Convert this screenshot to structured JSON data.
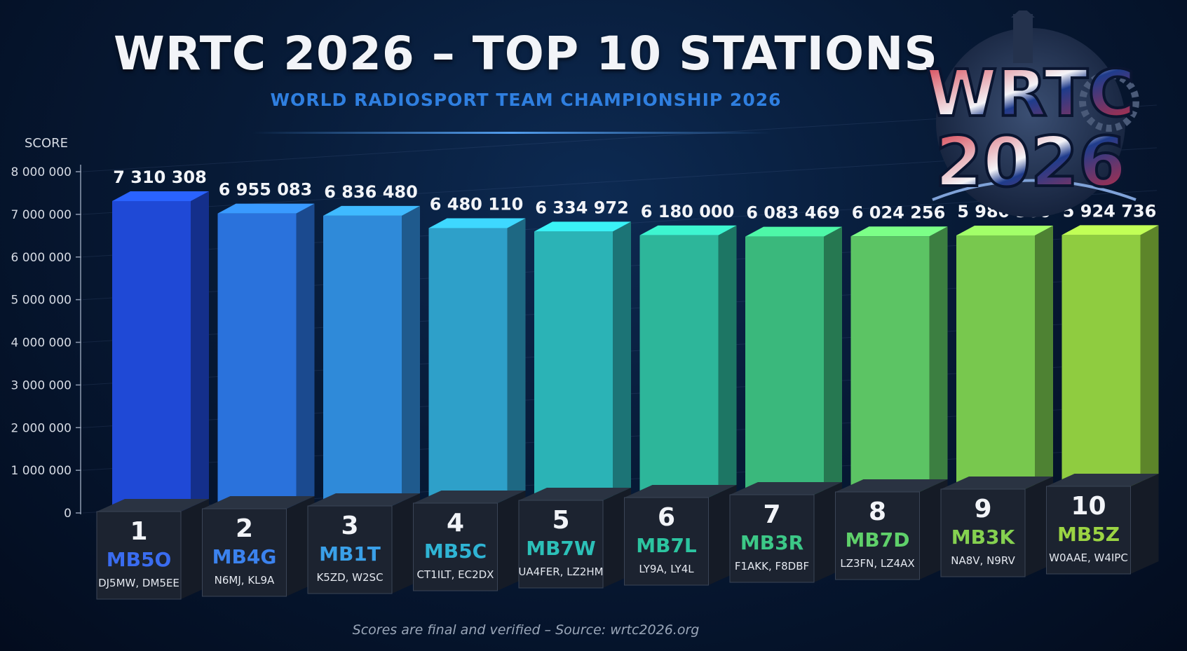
{
  "title": "WRTC 2026 – TOP 10 STATIONS",
  "subtitle": "WORLD RADIOSPORT TEAM CHAMPIONSHIP 2026",
  "footnote": "Scores are final and verified – Source: wrtc2026.org",
  "logo": {
    "line1": "WRTC",
    "line2": "2026"
  },
  "colors": {
    "bars": [
      "#1f49d6",
      "#2a72dc",
      "#2f8ad9",
      "#2ea0c9",
      "#2bb3b6",
      "#2db69a",
      "#3ab87c",
      "#5cc464",
      "#78c84e",
      "#8fcc40"
    ],
    "labels": [
      "#3a6cf0",
      "#3b82ee",
      "#3aa0e8",
      "#2fb4d4",
      "#2cc0b8",
      "#2cc4a0",
      "#3cc887",
      "#5fd06a",
      "#85d150",
      "#9bd443"
    ]
  },
  "chart_data": {
    "type": "bar",
    "ylabel": "SCORE",
    "ylim": [
      0,
      8000000
    ],
    "yticks": [
      "0",
      "1 000 000",
      "2 000 000",
      "3 000 000",
      "4 000 000",
      "5 000 000",
      "6 000 000",
      "7 000 000",
      "8 000 000"
    ],
    "ranks": [
      "1",
      "2",
      "3",
      "4",
      "5",
      "6",
      "7",
      "8",
      "9",
      "10"
    ],
    "categories": [
      "MB5O",
      "MB4G",
      "MB1T",
      "MB5C",
      "MB7W",
      "MB7L",
      "MB3R",
      "MB7D",
      "MB3K",
      "MB5Z"
    ],
    "operators": [
      "DJ5MW, DM5EE",
      "N6MJ, KL9A",
      "K5ZD, W2SC",
      "CT1ILT, EC2DX",
      "UA4FER, LZ2HM",
      "LY9A, LY4L",
      "F1AKK, F8DBF",
      "LZ3FN, LZ4AX",
      "NA8V, N9RV",
      "W0AAE, W4IPC"
    ],
    "values": [
      7310308,
      6955083,
      6836480,
      6480110,
      6334972,
      6180000,
      6083469,
      6024256,
      5980380,
      5924736
    ],
    "value_labels": [
      "7 310 308",
      "6 955 083",
      "6 836 480",
      "6 480 110",
      "6 334 972",
      "6 180 000",
      "6 083 469",
      "6 024 256",
      "5 980 380",
      "5 924 736"
    ]
  }
}
